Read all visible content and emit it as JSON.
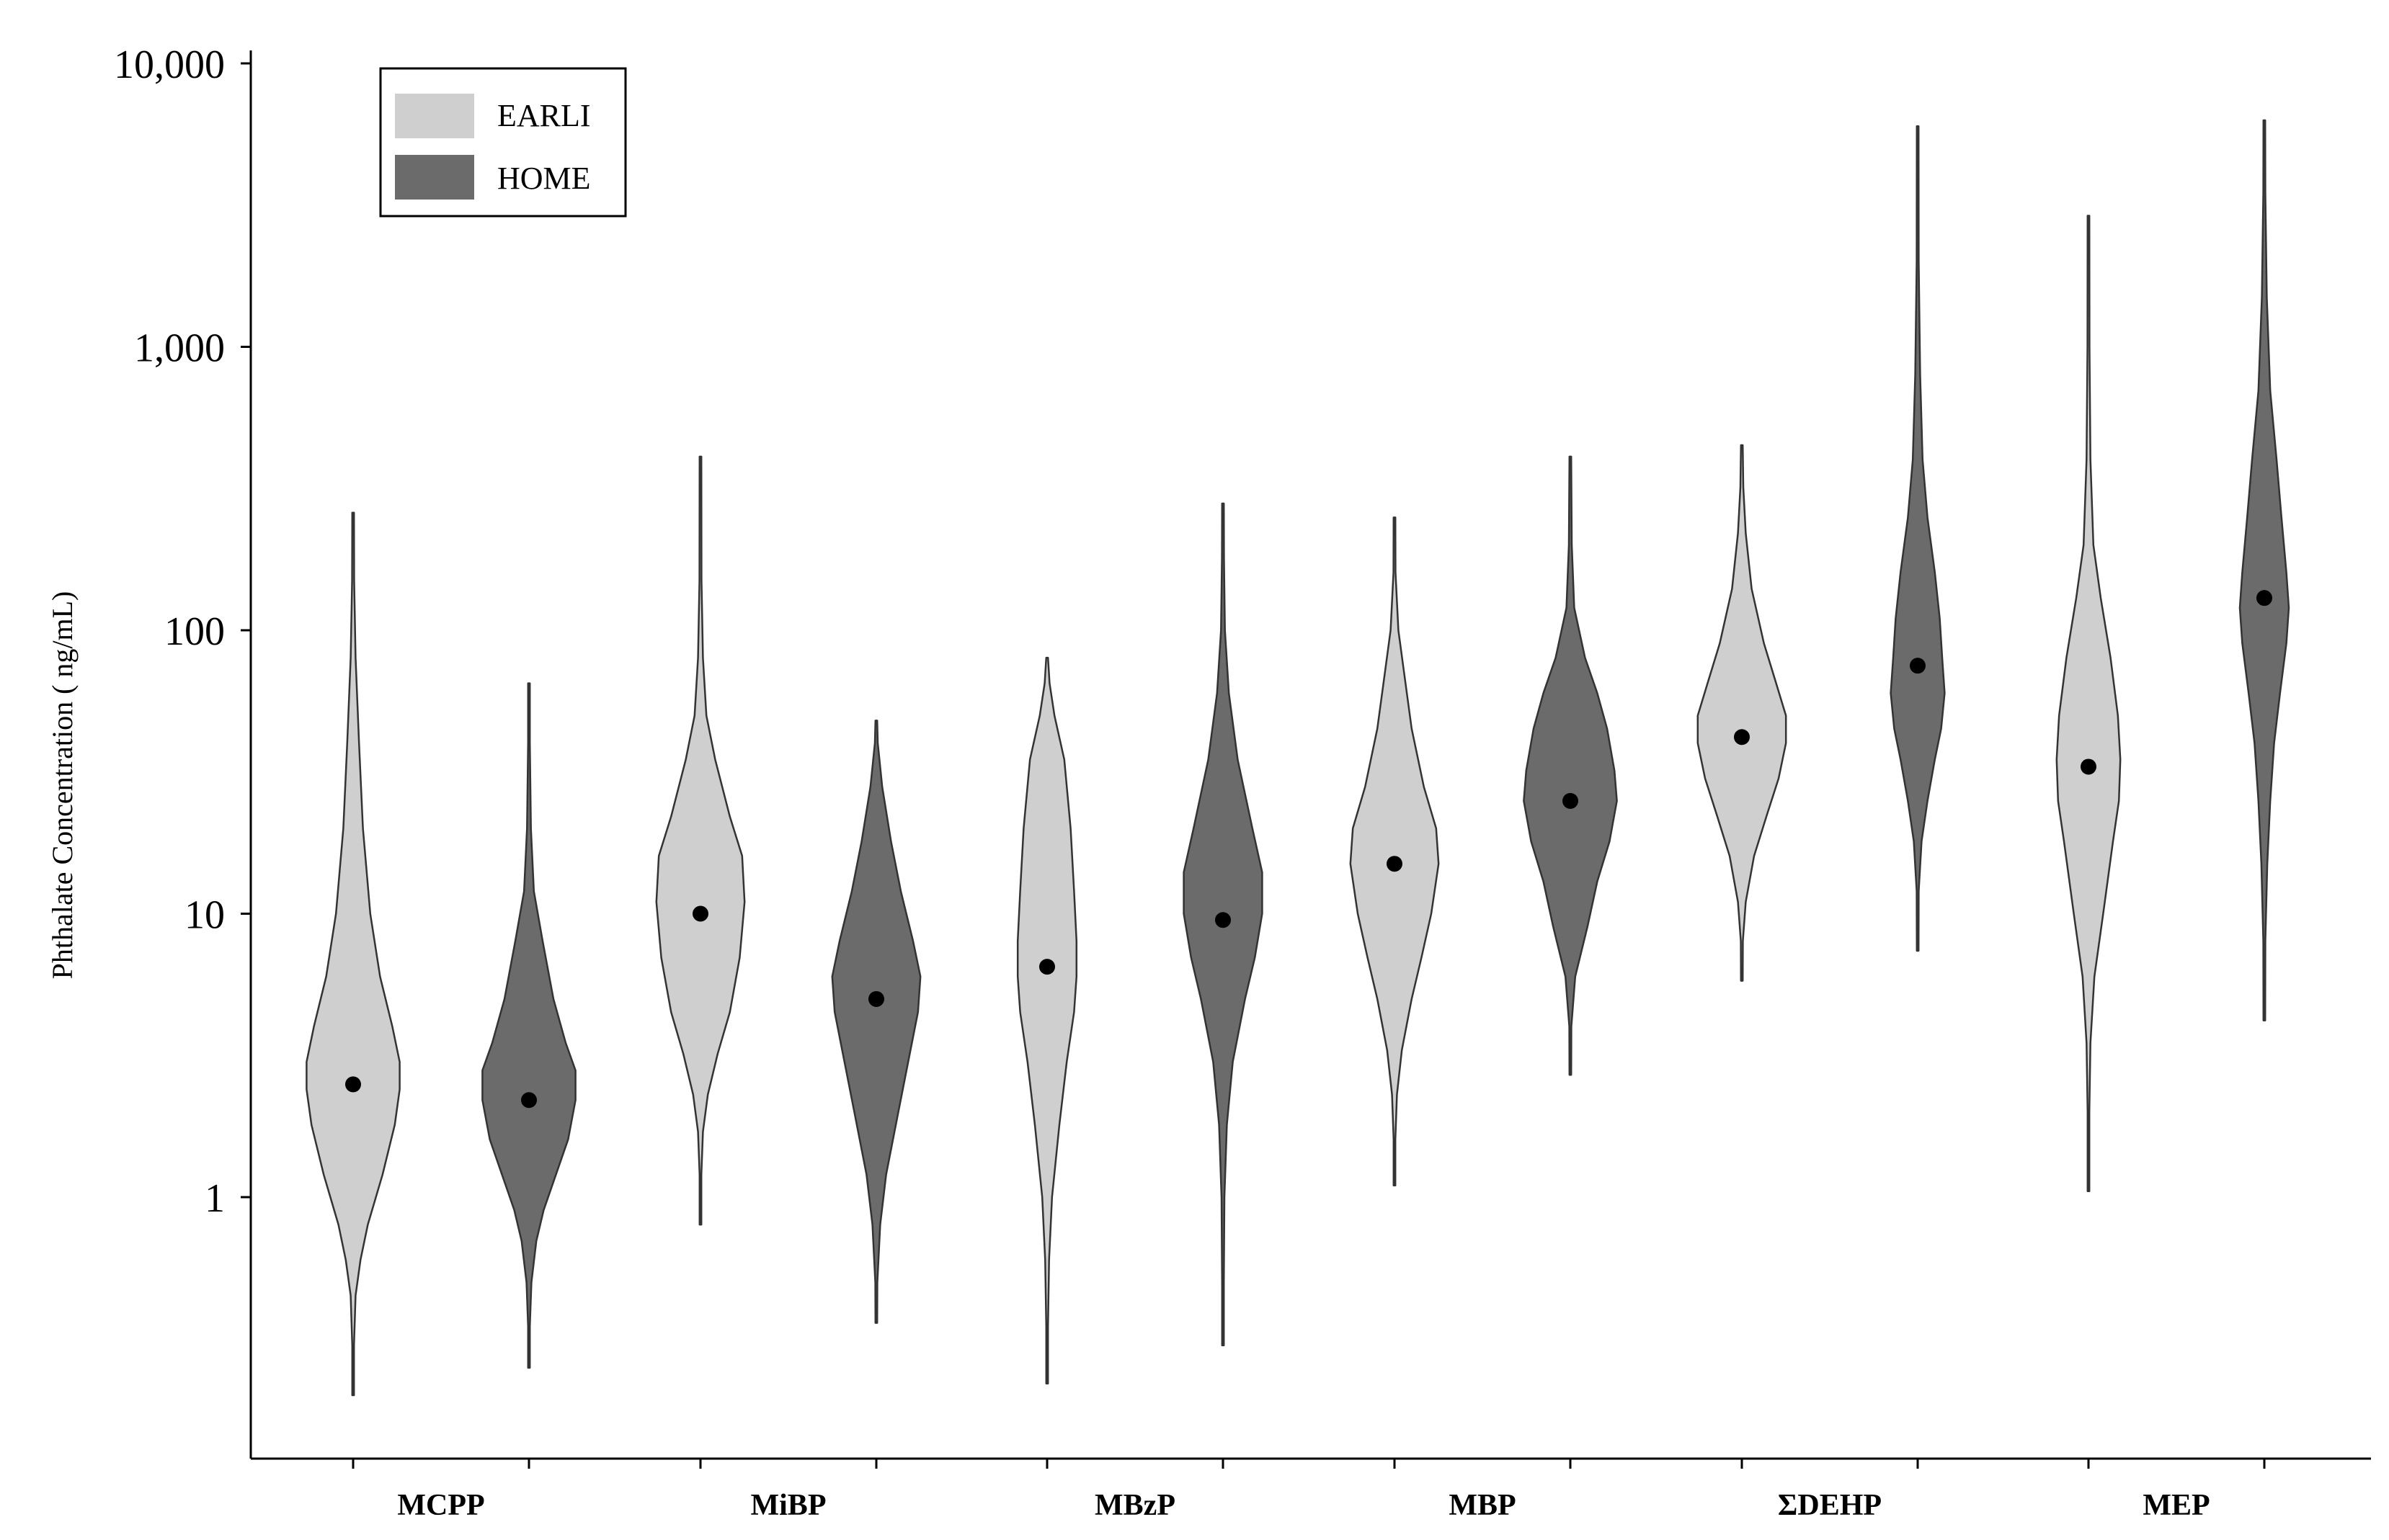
{
  "chart_data": {
    "type": "violin",
    "ylabel": "Phthalate Concentration ( ng/mL)",
    "xlabel": "",
    "yscale": "log",
    "ylim": [
      0.15,
      12000
    ],
    "yticks": [
      1,
      10,
      100,
      1000,
      10000
    ],
    "ytick_labels": [
      "1",
      "10",
      "100",
      "1,000",
      "10,000"
    ],
    "legend_position": "top-left",
    "categories": [
      "MCPP",
      "MiBP",
      "MBzP",
      "MBP",
      "ΣDEHP",
      "MEP"
    ],
    "series": [
      {
        "name": "EARLI",
        "color": "#cfcfcf",
        "median": [
          2.5,
          10,
          6.5,
          15,
          42,
          33
        ],
        "min": [
          0.2,
          0.8,
          0.22,
          1.1,
          5.8,
          1.05
        ],
        "max": [
          260,
          410,
          80,
          250,
          450,
          2900
        ]
      },
      {
        "name": "HOME",
        "color": "#6b6b6b",
        "median": [
          2.2,
          5,
          9.5,
          25,
          75,
          130
        ],
        "min": [
          0.25,
          0.36,
          0.3,
          2.7,
          7.4,
          4.2
        ],
        "max": [
          65,
          48,
          280,
          410,
          6000,
          6300
        ]
      }
    ],
    "density_profiles": [
      [
        [
          0.2,
          0.002
        ],
        [
          0.3,
          0.01
        ],
        [
          0.45,
          0.05
        ],
        [
          0.6,
          0.15
        ],
        [
          0.8,
          0.3
        ],
        [
          1.2,
          0.6
        ],
        [
          1.8,
          0.85
        ],
        [
          2.4,
          0.95
        ],
        [
          3,
          0.95
        ],
        [
          4,
          0.8
        ],
        [
          6,
          0.55
        ],
        [
          10,
          0.35
        ],
        [
          20,
          0.2
        ],
        [
          40,
          0.12
        ],
        [
          80,
          0.05
        ],
        [
          150,
          0.02
        ],
        [
          260,
          0.002
        ]
      ],
      [
        [
          0.25,
          0.002
        ],
        [
          0.35,
          0.01
        ],
        [
          0.5,
          0.05
        ],
        [
          0.7,
          0.15
        ],
        [
          0.9,
          0.3
        ],
        [
          1.2,
          0.55
        ],
        [
          1.6,
          0.8
        ],
        [
          2.2,
          0.95
        ],
        [
          2.8,
          0.95
        ],
        [
          3.5,
          0.75
        ],
        [
          5,
          0.5
        ],
        [
          8,
          0.28
        ],
        [
          12,
          0.1
        ],
        [
          20,
          0.04
        ],
        [
          40,
          0.01
        ],
        [
          65,
          0.002
        ]
      ],
      [
        [
          0.8,
          0.002
        ],
        [
          1.2,
          0.01
        ],
        [
          1.7,
          0.05
        ],
        [
          2.3,
          0.15
        ],
        [
          3.2,
          0.35
        ],
        [
          4.5,
          0.6
        ],
        [
          7,
          0.8
        ],
        [
          11,
          0.9
        ],
        [
          16,
          0.85
        ],
        [
          22,
          0.6
        ],
        [
          35,
          0.3
        ],
        [
          50,
          0.12
        ],
        [
          80,
          0.05
        ],
        [
          150,
          0.02
        ],
        [
          410,
          0.002
        ]
      ],
      [
        [
          0.36,
          0.002
        ],
        [
          0.5,
          0.02
        ],
        [
          0.8,
          0.08
        ],
        [
          1.2,
          0.2
        ],
        [
          2,
          0.45
        ],
        [
          3,
          0.65
        ],
        [
          4.5,
          0.85
        ],
        [
          6,
          0.9
        ],
        [
          8,
          0.75
        ],
        [
          12,
          0.5
        ],
        [
          18,
          0.3
        ],
        [
          28,
          0.12
        ],
        [
          40,
          0.03
        ],
        [
          48,
          0.002
        ]
      ],
      [
        [
          0.22,
          0.002
        ],
        [
          0.35,
          0.01
        ],
        [
          0.6,
          0.04
        ],
        [
          1,
          0.1
        ],
        [
          1.8,
          0.25
        ],
        [
          3,
          0.4
        ],
        [
          4.5,
          0.55
        ],
        [
          6,
          0.6
        ],
        [
          8,
          0.6
        ],
        [
          12,
          0.55
        ],
        [
          20,
          0.48
        ],
        [
          35,
          0.35
        ],
        [
          50,
          0.15
        ],
        [
          65,
          0.05
        ],
        [
          80,
          0.002
        ]
      ],
      [
        [
          0.3,
          0.002
        ],
        [
          0.5,
          0.01
        ],
        [
          1,
          0.03
        ],
        [
          1.8,
          0.08
        ],
        [
          3,
          0.2
        ],
        [
          5,
          0.45
        ],
        [
          7,
          0.65
        ],
        [
          10,
          0.8
        ],
        [
          14,
          0.8
        ],
        [
          20,
          0.6
        ],
        [
          35,
          0.3
        ],
        [
          60,
          0.12
        ],
        [
          100,
          0.04
        ],
        [
          180,
          0.02
        ],
        [
          280,
          0.002
        ]
      ],
      [
        [
          1.1,
          0.002
        ],
        [
          1.6,
          0.01
        ],
        [
          2.3,
          0.05
        ],
        [
          3.3,
          0.15
        ],
        [
          5,
          0.35
        ],
        [
          7,
          0.55
        ],
        [
          10,
          0.75
        ],
        [
          15,
          0.9
        ],
        [
          20,
          0.85
        ],
        [
          28,
          0.6
        ],
        [
          45,
          0.35
        ],
        [
          70,
          0.2
        ],
        [
          100,
          0.08
        ],
        [
          160,
          0.02
        ],
        [
          250,
          0.002
        ]
      ],
      [
        [
          2.7,
          0.002
        ],
        [
          4,
          0.02
        ],
        [
          6,
          0.1
        ],
        [
          9,
          0.35
        ],
        [
          13,
          0.55
        ],
        [
          18,
          0.8
        ],
        [
          25,
          0.95
        ],
        [
          32,
          0.9
        ],
        [
          45,
          0.75
        ],
        [
          60,
          0.55
        ],
        [
          80,
          0.3
        ],
        [
          120,
          0.08
        ],
        [
          200,
          0.03
        ],
        [
          410,
          0.002
        ]
      ],
      [
        [
          5.8,
          0.002
        ],
        [
          8,
          0.02
        ],
        [
          11,
          0.08
        ],
        [
          16,
          0.25
        ],
        [
          22,
          0.5
        ],
        [
          30,
          0.75
        ],
        [
          40,
          0.9
        ],
        [
          50,
          0.9
        ],
        [
          65,
          0.7
        ],
        [
          90,
          0.45
        ],
        [
          140,
          0.2
        ],
        [
          220,
          0.08
        ],
        [
          320,
          0.03
        ],
        [
          450,
          0.002
        ]
      ],
      [
        [
          7.4,
          0.002
        ],
        [
          12,
          0.02
        ],
        [
          18,
          0.08
        ],
        [
          25,
          0.2
        ],
        [
          35,
          0.35
        ],
        [
          45,
          0.48
        ],
        [
          60,
          0.55
        ],
        [
          80,
          0.5
        ],
        [
          110,
          0.45
        ],
        [
          160,
          0.35
        ],
        [
          250,
          0.2
        ],
        [
          400,
          0.1
        ],
        [
          800,
          0.05
        ],
        [
          2000,
          0.02
        ],
        [
          6000,
          0.002
        ]
      ],
      [
        [
          1.05,
          0.002
        ],
        [
          2,
          0.01
        ],
        [
          3.5,
          0.04
        ],
        [
          6,
          0.12
        ],
        [
          10,
          0.3
        ],
        [
          18,
          0.5
        ],
        [
          25,
          0.62
        ],
        [
          35,
          0.65
        ],
        [
          50,
          0.6
        ],
        [
          80,
          0.45
        ],
        [
          130,
          0.25
        ],
        [
          200,
          0.1
        ],
        [
          400,
          0.04
        ],
        [
          1000,
          0.02
        ],
        [
          2900,
          0.002
        ]
      ],
      [
        [
          4.2,
          0.002
        ],
        [
          8,
          0.02
        ],
        [
          15,
          0.06
        ],
        [
          25,
          0.12
        ],
        [
          40,
          0.2
        ],
        [
          60,
          0.32
        ],
        [
          90,
          0.45
        ],
        [
          120,
          0.5
        ],
        [
          160,
          0.45
        ],
        [
          250,
          0.35
        ],
        [
          400,
          0.25
        ],
        [
          700,
          0.12
        ],
        [
          1500,
          0.05
        ],
        [
          3500,
          0.02
        ],
        [
          6300,
          0.002
        ]
      ]
    ]
  }
}
